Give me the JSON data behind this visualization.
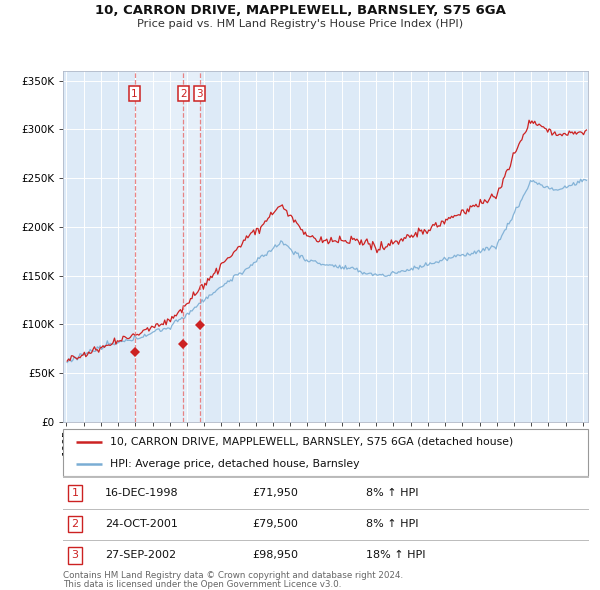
{
  "title1": "10, CARRON DRIVE, MAPPLEWELL, BARNSLEY, S75 6GA",
  "title2": "Price paid vs. HM Land Registry's House Price Index (HPI)",
  "legend1": "10, CARRON DRIVE, MAPPLEWELL, BARNSLEY, S75 6GA (detached house)",
  "legend2": "HPI: Average price, detached house, Barnsley",
  "footer1": "Contains HM Land Registry data © Crown copyright and database right 2024.",
  "footer2": "This data is licensed under the Open Government Licence v3.0.",
  "transactions": [
    {
      "num": "1",
      "date": "16-DEC-1998",
      "price": "£71,950",
      "pct": "8% ↑ HPI",
      "decimal_date": 1998.958,
      "price_val": 71950
    },
    {
      "num": "2",
      "date": "24-OCT-2001",
      "price": "£79,500",
      "pct": "8% ↑ HPI",
      "decimal_date": 2001.792,
      "price_val": 79500
    },
    {
      "num": "3",
      "date": "27-SEP-2002",
      "price": "£98,950",
      "pct": "18% ↑ HPI",
      "decimal_date": 2002.736,
      "price_val": 98950
    }
  ],
  "hpi_color": "#7aadd4",
  "price_color": "#cc2222",
  "bg_color": "#ddeaf7",
  "grid_color": "#ffffff",
  "vline_color": "#e87070",
  "ylim": [
    0,
    360000
  ],
  "ytick_vals": [
    0,
    50000,
    100000,
    150000,
    200000,
    250000,
    300000,
    350000
  ],
  "ytick_labels": [
    "£0",
    "£50K",
    "£100K",
    "£150K",
    "£200K",
    "£250K",
    "£300K",
    "£350K"
  ],
  "xstart": 1995,
  "xend": 2025
}
